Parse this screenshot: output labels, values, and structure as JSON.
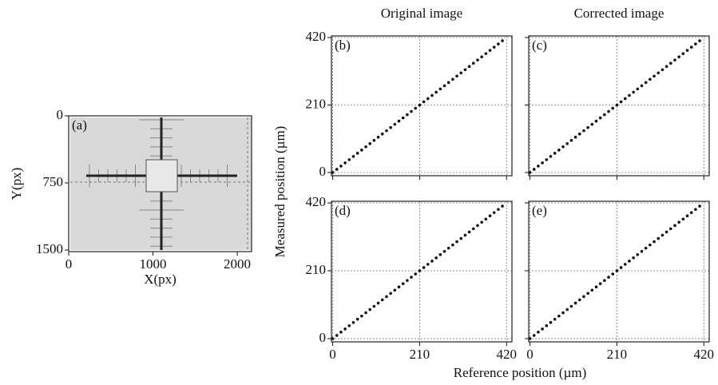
{
  "figure": {
    "ylabel": "Measured position (µm)",
    "xlabel": "Reference position (µm)"
  },
  "chart_data": [
    {
      "type": "image",
      "label": "(a)",
      "xlabel": "X(px)",
      "ylabel": "Y(px)",
      "xlim": [
        0,
        2170
      ],
      "ylim": [
        0,
        1518
      ],
      "y_inverted": true,
      "xticks": [
        0,
        1000,
        2000
      ],
      "yticks": [
        0,
        750,
        1500
      ]
    },
    {
      "type": "scatter",
      "title": "Original image",
      "label": "(b)",
      "color": "#111111",
      "xlim": [
        -3,
        433
      ],
      "ylim": [
        -10,
        425
      ],
      "xticks": [
        0,
        210,
        420
      ],
      "yticks": [
        0,
        210,
        420
      ],
      "grid": "dashed",
      "x": [
        0,
        10,
        20,
        30,
        40,
        50,
        60,
        70,
        80,
        90,
        100,
        110,
        120,
        130,
        140,
        150,
        160,
        170,
        180,
        190,
        200,
        210,
        220,
        230,
        240,
        250,
        260,
        270,
        280,
        290,
        300,
        310,
        320,
        330,
        340,
        350,
        360,
        370,
        380,
        390,
        400,
        410
      ],
      "y": [
        0,
        10,
        20,
        30,
        40,
        50,
        60,
        70,
        80,
        90,
        100,
        110,
        120,
        130,
        140,
        150,
        160,
        170,
        180,
        190,
        200,
        210,
        220,
        230,
        240,
        250,
        260,
        270,
        280,
        290,
        300,
        310,
        320,
        330,
        340,
        350,
        360,
        370,
        380,
        390,
        400,
        410
      ]
    },
    {
      "type": "scatter",
      "title": "Corrected image",
      "label": "(c)",
      "color": "#111111",
      "xlim": [
        -3,
        433
      ],
      "ylim": [
        -10,
        425
      ],
      "xticks": [
        0,
        210,
        420
      ],
      "yticks": [
        0,
        210,
        420
      ],
      "grid": "dashed",
      "x": [
        0,
        10,
        20,
        30,
        40,
        50,
        60,
        70,
        80,
        90,
        100,
        110,
        120,
        130,
        140,
        150,
        160,
        170,
        180,
        190,
        200,
        210,
        220,
        230,
        240,
        250,
        260,
        270,
        280,
        290,
        300,
        310,
        320,
        330,
        340,
        350,
        360,
        370,
        380,
        390,
        400,
        410
      ],
      "y": [
        0,
        10,
        20,
        30,
        40,
        50,
        60,
        70,
        80,
        90,
        100,
        110,
        120,
        130,
        140,
        150,
        160,
        170,
        180,
        190,
        200,
        210,
        220,
        230,
        240,
        250,
        260,
        270,
        280,
        290,
        300,
        310,
        320,
        330,
        340,
        350,
        360,
        370,
        380,
        390,
        400,
        410
      ]
    },
    {
      "type": "scatter",
      "label": "(d)",
      "color": "#111111",
      "xlim": [
        -3,
        433
      ],
      "ylim": [
        -10,
        425
      ],
      "xticks": [
        0,
        210,
        420
      ],
      "yticks": [
        0,
        210,
        420
      ],
      "grid": "dashed",
      "x": [
        0,
        10,
        20,
        30,
        40,
        50,
        60,
        70,
        80,
        90,
        100,
        110,
        120,
        130,
        140,
        150,
        160,
        170,
        180,
        190,
        200,
        210,
        220,
        230,
        240,
        250,
        260,
        270,
        280,
        290,
        300,
        310,
        320,
        330,
        340,
        350,
        360,
        370,
        380,
        390,
        400,
        410
      ],
      "y": [
        0,
        10,
        20,
        30,
        40,
        50,
        60,
        70,
        80,
        90,
        100,
        110,
        120,
        130,
        140,
        150,
        160,
        170,
        180,
        190,
        200,
        210,
        220,
        230,
        240,
        250,
        260,
        270,
        280,
        290,
        300,
        310,
        320,
        330,
        340,
        350,
        360,
        370,
        380,
        390,
        400,
        410
      ]
    },
    {
      "type": "scatter",
      "label": "(e)",
      "color": "#111111",
      "xlim": [
        -3,
        433
      ],
      "ylim": [
        -10,
        425
      ],
      "xticks": [
        0,
        210,
        420
      ],
      "yticks": [
        0,
        210,
        420
      ],
      "grid": "dashed",
      "x": [
        0,
        10,
        20,
        30,
        40,
        50,
        60,
        70,
        80,
        90,
        100,
        110,
        120,
        130,
        140,
        150,
        160,
        170,
        180,
        190,
        200,
        210,
        220,
        230,
        240,
        250,
        260,
        270,
        280,
        290,
        300,
        310,
        320,
        330,
        340,
        350,
        360,
        370,
        380,
        390,
        400,
        410
      ],
      "y": [
        0,
        10,
        20,
        30,
        40,
        50,
        60,
        70,
        80,
        90,
        100,
        110,
        120,
        130,
        140,
        150,
        160,
        170,
        180,
        190,
        200,
        210,
        220,
        230,
        240,
        250,
        260,
        270,
        280,
        290,
        300,
        310,
        320,
        330,
        340,
        350,
        360,
        370,
        380,
        390,
        400,
        410
      ]
    }
  ]
}
